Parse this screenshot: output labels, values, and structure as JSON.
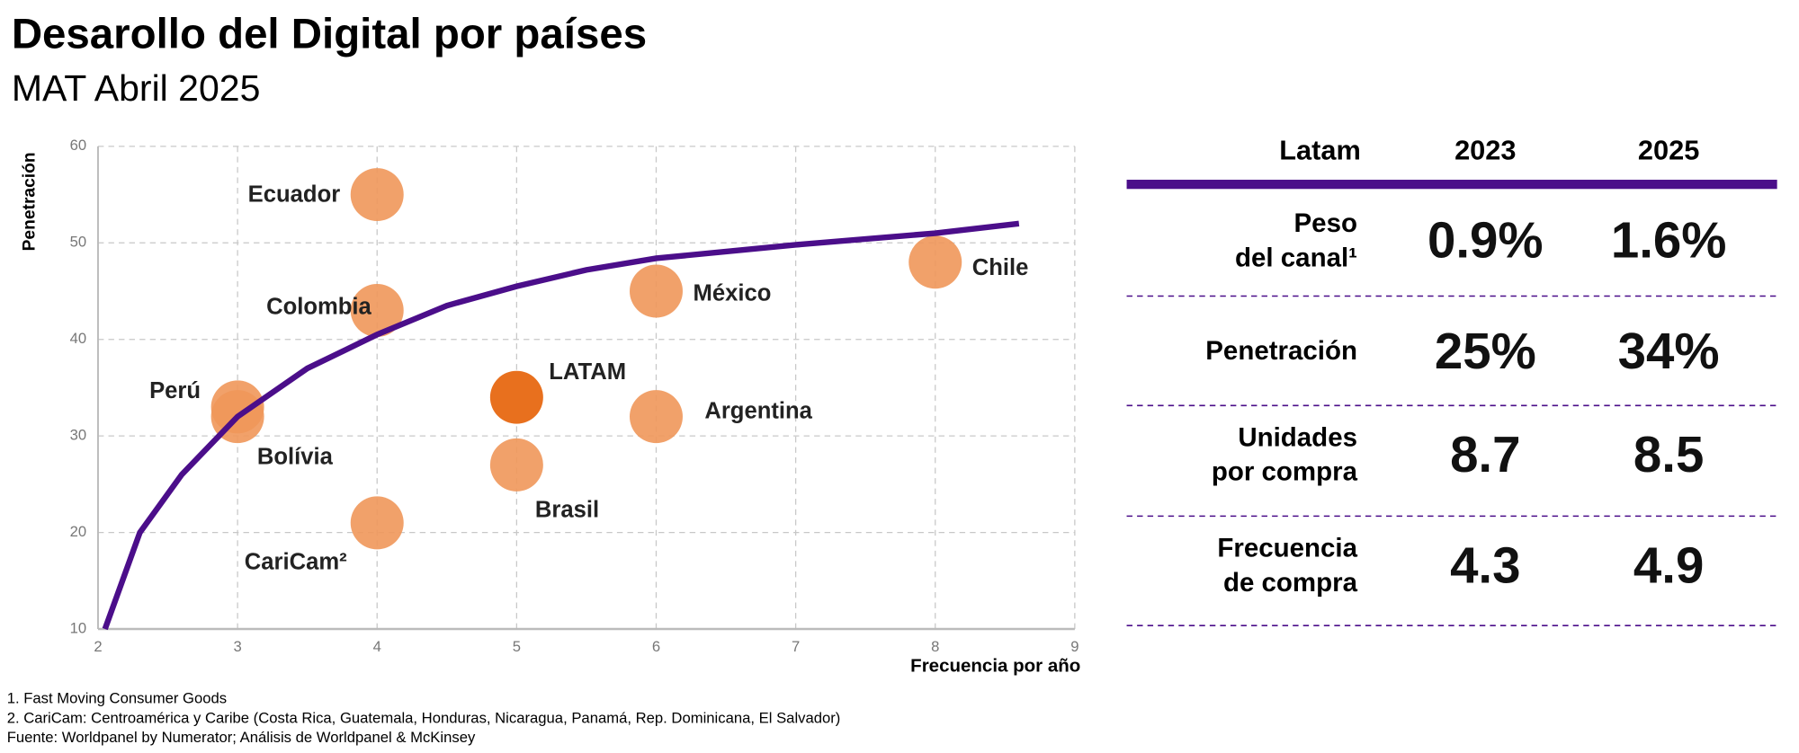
{
  "chart_data": {
    "type": "scatter",
    "title": "Desarollo del Digital por países",
    "subtitle": "MAT Abril 2025",
    "x_label": "Frecuencia por año",
    "y_label": "Penetración",
    "xlim": [
      2,
      9
    ],
    "xticks": [
      2,
      3,
      4,
      5,
      6,
      7,
      8,
      9
    ],
    "ylim": [
      10,
      60
    ],
    "yticks": [
      10,
      20,
      30,
      40,
      50,
      60
    ],
    "grid": true,
    "color": "#f0975a",
    "highlight_color": "#e8701e",
    "points": [
      {
        "name": "Ecuador",
        "x": 4,
        "y": 55
      },
      {
        "name": "Colombia",
        "x": 4,
        "y": 43
      },
      {
        "name": "Perú",
        "x": 3,
        "y": 33
      },
      {
        "name": "Bolívia",
        "x": 3,
        "y": 32
      },
      {
        "name": "LATAM",
        "x": 5,
        "y": 34,
        "highlight": true
      },
      {
        "name": "Argentina",
        "x": 6,
        "y": 32
      },
      {
        "name": "México",
        "x": 6,
        "y": 45
      },
      {
        "name": "Chile",
        "x": 8,
        "y": 48
      },
      {
        "name": "Brasil",
        "x": 5,
        "y": 27
      },
      {
        "name": "CariCam²",
        "x": 4,
        "y": 21
      }
    ],
    "trend": {
      "color": "#4b0e8a",
      "x": [
        2.05,
        2.3,
        2.6,
        3,
        3.5,
        4,
        4.5,
        5,
        5.5,
        6,
        7,
        8,
        8.6
      ],
      "values": [
        10,
        20,
        26,
        32,
        37,
        40.5,
        43.5,
        45.5,
        47.2,
        48.4,
        49.8,
        51,
        52
      ]
    }
  },
  "table": {
    "header": [
      "Latam",
      "2023",
      "2025"
    ],
    "rows": [
      {
        "label": [
          "Peso",
          "del canal¹"
        ],
        "values": [
          "0.9%",
          "1.6%"
        ]
      },
      {
        "label": [
          "Penetración"
        ],
        "values": [
          "25%",
          "34%"
        ]
      },
      {
        "label": [
          "Unidades",
          "por compra"
        ],
        "values": [
          "8.7",
          "8.5"
        ]
      },
      {
        "label": [
          "Frecuencia",
          "de compra"
        ],
        "values": [
          "4.3",
          "4.9"
        ]
      }
    ]
  },
  "footnotes": [
    "1. Fast Moving Consumer Goods",
    "2. CariCam: Centroamérica y Caribe (Costa Rica, Guatemala, Honduras, Nicaragua, Panamá, Rep. Dominicana, El Salvador)",
    "Fuente: Worldpanel by Numerator; Análisis de Worldpanel & McKinsey"
  ]
}
